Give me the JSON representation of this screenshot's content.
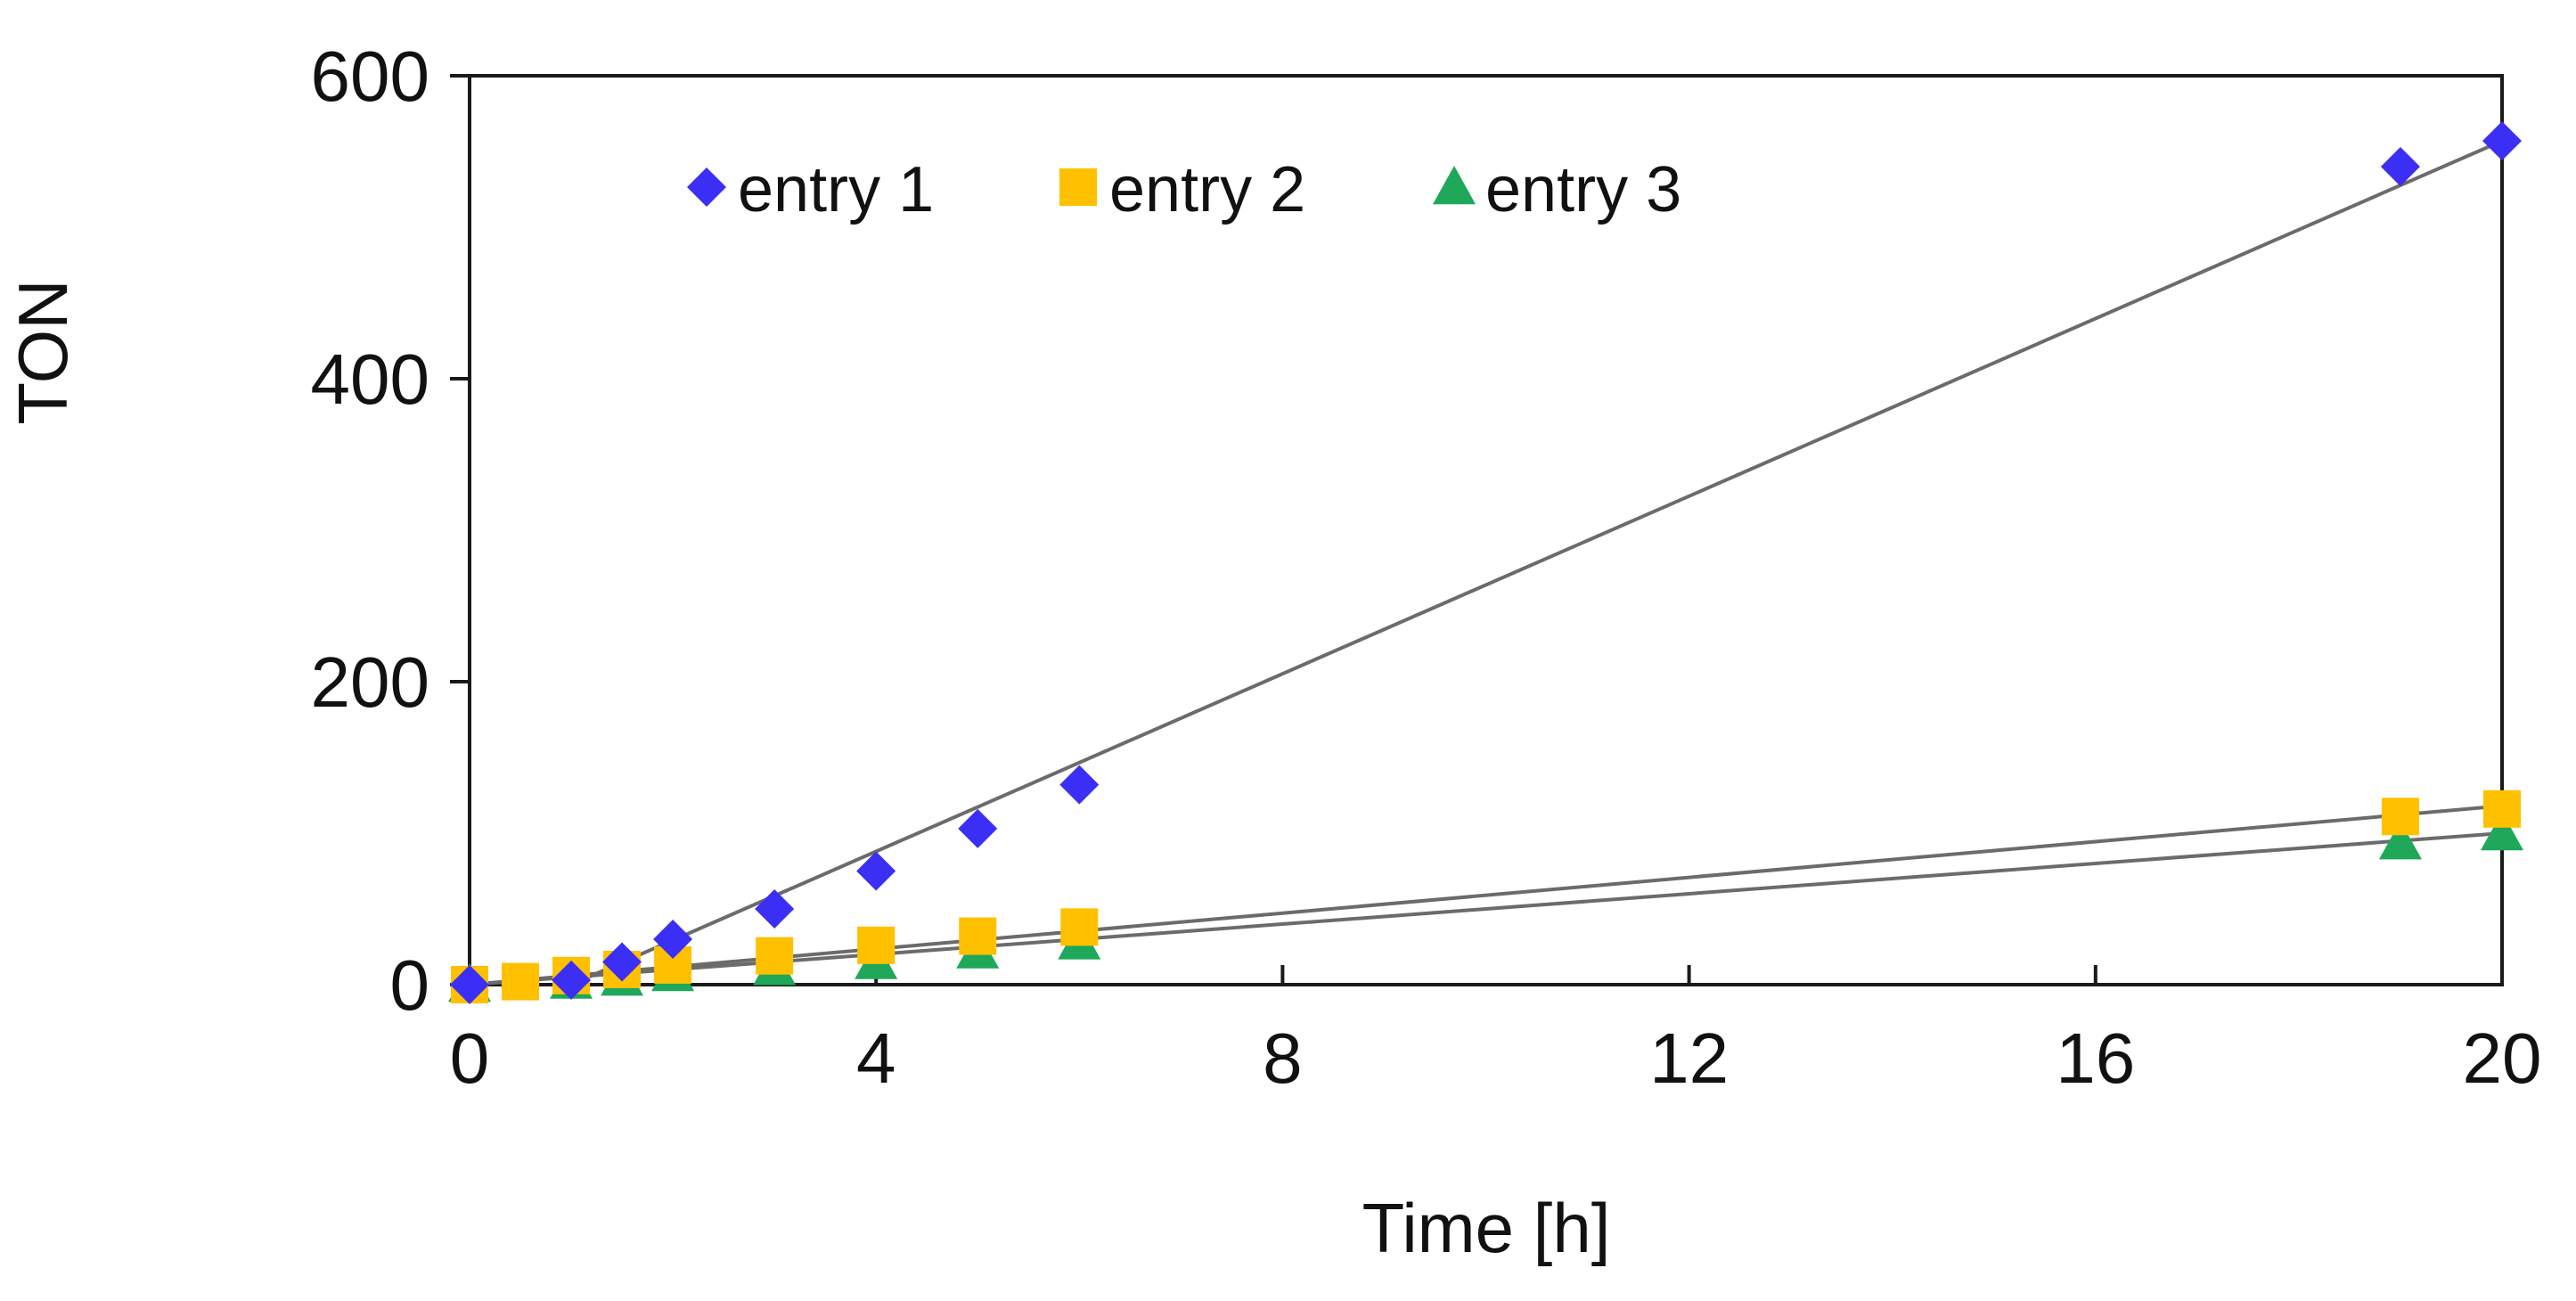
{
  "chart_data": {
    "type": "scatter",
    "title": "",
    "xlabel": "Time [h]",
    "ylabel": "TON",
    "xlim": [
      0,
      20
    ],
    "ylim": [
      0,
      600
    ],
    "x_ticks": [
      0,
      4,
      8,
      12,
      16,
      20
    ],
    "y_ticks": [
      0,
      200,
      400,
      600
    ],
    "x_tick_labels": [
      "0",
      "4",
      "8",
      "12",
      "16",
      "20"
    ],
    "y_tick_labels": [
      "0",
      "200",
      "400",
      "600"
    ],
    "grid": false,
    "legend_position": "top-left",
    "series": [
      {
        "name": "entry 1",
        "marker": "diamond",
        "color": "#3B2FF5",
        "x": [
          0,
          1,
          1.5,
          2,
          3,
          4,
          5,
          6,
          19,
          20
        ],
        "y": [
          0,
          3,
          15,
          30,
          50,
          75,
          103,
          132,
          540,
          557
        ],
        "fit": {
          "x": [
            1,
            20
          ],
          "y": [
            0,
            557
          ]
        }
      },
      {
        "name": "entry 2",
        "marker": "square",
        "color": "#FFC000",
        "x": [
          0,
          0.5,
          1,
          1.5,
          2,
          3,
          4,
          5,
          6,
          19,
          20
        ],
        "y": [
          0,
          2,
          6,
          10,
          13,
          19,
          26,
          32,
          38,
          111,
          116
        ],
        "fit": {
          "x": [
            0,
            20
          ],
          "y": [
            0,
            118
          ]
        }
      },
      {
        "name": "entry 3",
        "marker": "triangle",
        "color": "#1FA75A",
        "x": [
          0,
          1,
          1.5,
          2,
          3,
          4,
          5,
          6,
          19,
          20
        ],
        "y": [
          0,
          2,
          4,
          7,
          11,
          15,
          22,
          28,
          94,
          100
        ],
        "fit": {
          "x": [
            0,
            20
          ],
          "y": [
            0,
            100
          ]
        }
      }
    ],
    "fit_line_color": "#6b6b6b"
  }
}
